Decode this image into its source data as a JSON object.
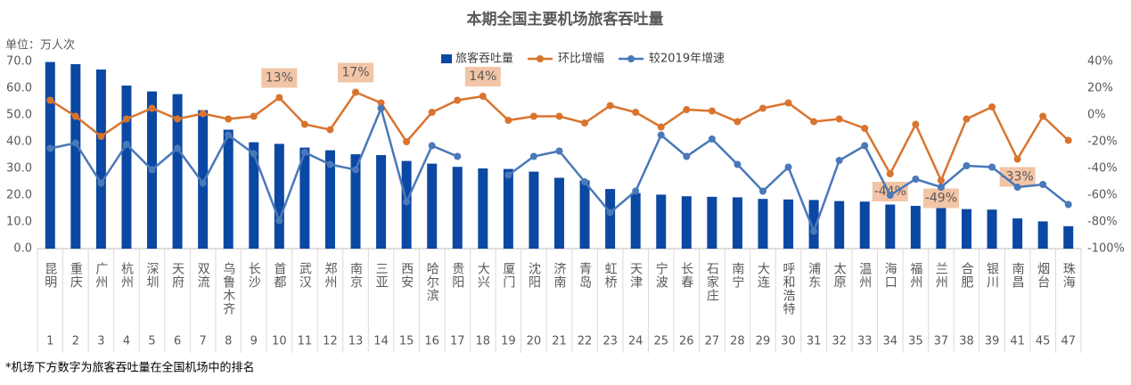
{
  "chart_data": {
    "type": "bar-line",
    "title": "本期全国主要机场旅客吞吐量",
    "unit_label": "单位：万人次",
    "footnote": "*机场下方数字为旅客吞吐量在全国机场中的排名",
    "categories": [
      "昆明",
      "重庆",
      "广州",
      "杭州",
      "深圳",
      "天府",
      "双流",
      "乌鲁木齐",
      "长沙",
      "首都",
      "武汉",
      "郑州",
      "南京",
      "三亚",
      "西安",
      "哈尔滨",
      "贵阳",
      "大兴",
      "厦门",
      "沈阳",
      "济南",
      "青岛",
      "虹桥",
      "天津",
      "宁波",
      "长春",
      "石家庄",
      "南宁",
      "大连",
      "呼和浩特",
      "浦东",
      "太原",
      "温州",
      "海口",
      "福州",
      "兰州",
      "合肥",
      "银川",
      "南昌",
      "烟台",
      "珠海"
    ],
    "ranks": [
      1,
      2,
      3,
      4,
      5,
      6,
      7,
      8,
      9,
      10,
      11,
      12,
      13,
      14,
      15,
      16,
      17,
      18,
      19,
      20,
      21,
      22,
      23,
      24,
      25,
      26,
      27,
      28,
      29,
      30,
      31,
      32,
      33,
      34,
      35,
      37,
      38,
      39,
      41,
      45,
      47
    ],
    "series": [
      {
        "name": "旅客吞吐量",
        "type": "bar",
        "color": "#0b48a3",
        "values": [
          69.8,
          69.0,
          67.0,
          61.0,
          58.8,
          57.8,
          51.8,
          44.5,
          39.8,
          39.2,
          37.8,
          36.8,
          35.3,
          35.0,
          32.8,
          31.8,
          30.6,
          30.0,
          29.8,
          28.8,
          26.5,
          25.5,
          22.3,
          20.8,
          20.2,
          19.6,
          19.4,
          19.2,
          18.6,
          18.4,
          18.2,
          17.8,
          17.6,
          16.5,
          16.0,
          15.5,
          14.8,
          14.6,
          11.3,
          10.2,
          8.4
        ]
      },
      {
        "name": "环比增幅",
        "type": "line",
        "axis": "y2",
        "color": "#d9742f",
        "values": [
          11,
          -1,
          -16,
          -3,
          5,
          -3,
          1,
          -3,
          -1,
          13,
          -7,
          -11,
          17,
          9,
          -20,
          2,
          11,
          14,
          -4,
          -1,
          -1,
          -6,
          7,
          2,
          -9,
          4,
          3,
          -5,
          5,
          9,
          -5,
          -3,
          -10,
          -44,
          -7,
          -49,
          -3,
          6,
          -33,
          -1,
          -19
        ],
        "value_labels": [
          null,
          null,
          null,
          null,
          null,
          null,
          null,
          null,
          null,
          "13%",
          null,
          null,
          "17%",
          null,
          null,
          null,
          null,
          "14%",
          null,
          null,
          null,
          null,
          null,
          null,
          null,
          null,
          null,
          null,
          null,
          null,
          null,
          null,
          null,
          "-44%",
          null,
          "-49%",
          null,
          null,
          "-33%",
          null,
          null
        ]
      },
      {
        "name": "较2019年增速",
        "type": "line",
        "axis": "y2",
        "color": "#4a78b8",
        "values": [
          -25,
          -21,
          -51,
          -22,
          -41,
          -25,
          -51,
          -15,
          -29,
          -79,
          -28,
          -37,
          -41,
          5,
          -65,
          -23,
          -31,
          null,
          -45,
          -31,
          -27,
          -50,
          -73,
          -57,
          -15,
          -31,
          -18,
          -37,
          -57,
          -39,
          -87,
          -34,
          -23,
          -60,
          -48,
          -54,
          -38,
          -39,
          -54,
          -52,
          -67
        ]
      }
    ],
    "ylim": [
      0,
      70
    ],
    "yticks": [
      {
        "value": 0,
        "label": "0.0"
      },
      {
        "value": 10,
        "label": "10.0"
      },
      {
        "value": 20,
        "label": "20.0"
      },
      {
        "value": 30,
        "label": "30.0"
      },
      {
        "value": 40,
        "label": "40.0"
      },
      {
        "value": 50,
        "label": "50.0"
      },
      {
        "value": 60,
        "label": "60.0"
      },
      {
        "value": 70,
        "label": "70.0"
      }
    ],
    "y2lim": [
      -100,
      40
    ],
    "y2ticks": [
      {
        "value": -100,
        "label": "-100%"
      },
      {
        "value": -80,
        "label": "-80%"
      },
      {
        "value": -60,
        "label": "-60%"
      },
      {
        "value": -40,
        "label": "-40%"
      },
      {
        "value": -20,
        "label": "-20%"
      },
      {
        "value": 0,
        "label": "0%"
      },
      {
        "value": 20,
        "label": "20%"
      },
      {
        "value": 40,
        "label": "40%"
      }
    ]
  }
}
